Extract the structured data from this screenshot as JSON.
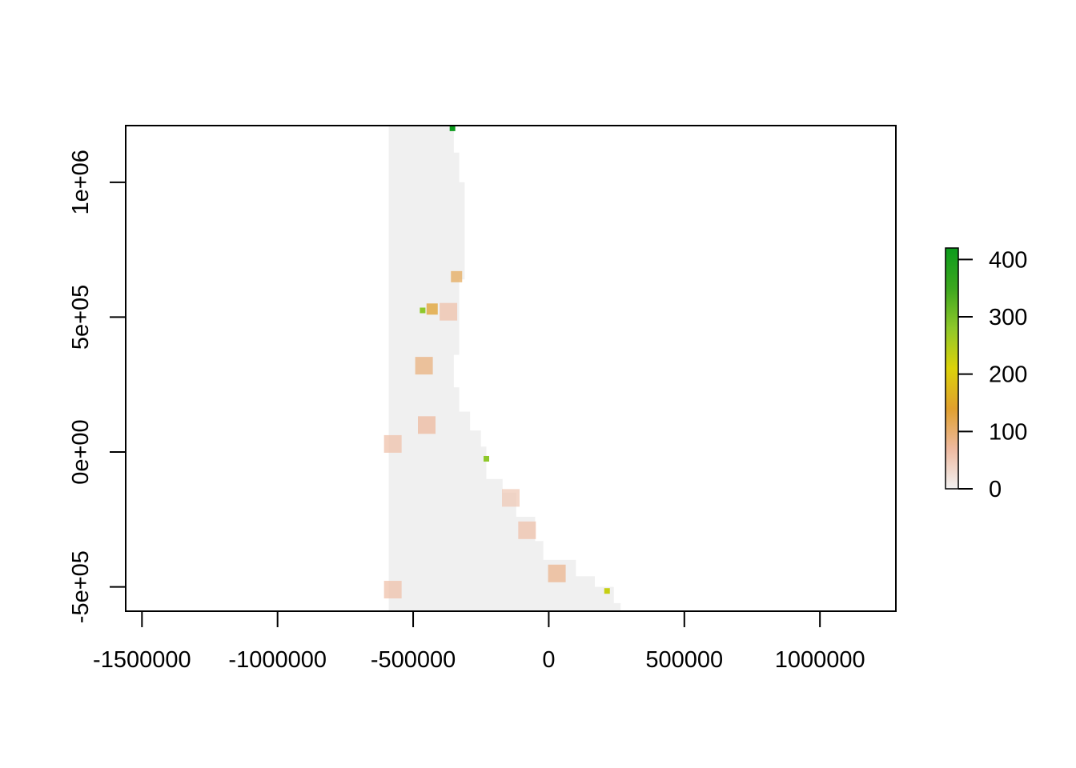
{
  "chart_data": {
    "type": "heatmap",
    "title": "",
    "xlabel": "",
    "ylabel": "",
    "xlim": [
      -1560000,
      1280000
    ],
    "ylim": [
      -590000,
      1210000
    ],
    "x_ticks": [
      {
        "value": -1500000,
        "label": "-1500000"
      },
      {
        "value": -1000000,
        "label": "-1000000"
      },
      {
        "value": -500000,
        "label": "-500000"
      },
      {
        "value": 0,
        "label": "0"
      },
      {
        "value": 500000,
        "label": "500000"
      },
      {
        "value": 1000000,
        "label": "1000000"
      }
    ],
    "y_ticks": [
      {
        "value": -500000,
        "label": "-5e+05"
      },
      {
        "value": 0,
        "label": "0e+00"
      },
      {
        "value": 500000,
        "label": "5e+05"
      },
      {
        "value": 1000000,
        "label": "1e+06"
      }
    ],
    "colorbar": {
      "min": 0,
      "max": 420,
      "ticks": [
        {
          "value": 0,
          "label": "0"
        },
        {
          "value": 100,
          "label": "100"
        },
        {
          "value": 200,
          "label": "200"
        },
        {
          "value": 300,
          "label": "300"
        },
        {
          "value": 400,
          "label": "400"
        }
      ],
      "colors": [
        "#f2f2f2",
        "#eeb99f",
        "#e0a02e",
        "#dcd20a",
        "#8fc82a",
        "#3ca71f",
        "#0c9b1c"
      ]
    },
    "background_value_color": "#f0f0f0",
    "region_outline": [
      [
        -590000,
        -590000
      ],
      [
        -590000,
        1210000
      ],
      [
        -350000,
        1210000
      ],
      [
        -350000,
        1110000
      ],
      [
        -330000,
        1110000
      ],
      [
        -330000,
        1000000
      ],
      [
        -310000,
        1000000
      ],
      [
        -310000,
        640000
      ],
      [
        -330000,
        640000
      ],
      [
        -330000,
        360000
      ],
      [
        -350000,
        360000
      ],
      [
        -350000,
        240000
      ],
      [
        -330000,
        240000
      ],
      [
        -330000,
        150000
      ],
      [
        -290000,
        150000
      ],
      [
        -290000,
        80000
      ],
      [
        -250000,
        80000
      ],
      [
        -250000,
        20000
      ],
      [
        -230000,
        20000
      ],
      [
        -230000,
        -100000
      ],
      [
        -170000,
        -100000
      ],
      [
        -170000,
        -150000
      ],
      [
        -120000,
        -150000
      ],
      [
        -120000,
        -240000
      ],
      [
        -50000,
        -240000
      ],
      [
        -50000,
        -330000
      ],
      [
        -20000,
        -330000
      ],
      [
        -20000,
        -400000
      ],
      [
        100000,
        -400000
      ],
      [
        100000,
        -460000
      ],
      [
        170000,
        -460000
      ],
      [
        170000,
        -500000
      ],
      [
        240000,
        -500000
      ],
      [
        240000,
        -560000
      ],
      [
        265000,
        -560000
      ],
      [
        265000,
        -590000
      ]
    ],
    "hotspots": [
      {
        "x": -430000,
        "y": 530000,
        "value": 140
      },
      {
        "x": -465000,
        "y": 525000,
        "value": 280
      },
      {
        "x": -460000,
        "y": 320000,
        "value": 90
      },
      {
        "x": -450000,
        "y": 100000,
        "value": 70
      },
      {
        "x": -575000,
        "y": 30000,
        "value": 60
      },
      {
        "x": -575000,
        "y": -510000,
        "value": 60
      },
      {
        "x": -340000,
        "y": 650000,
        "value": 110
      },
      {
        "x": -370000,
        "y": 520000,
        "value": 60
      },
      {
        "x": -230000,
        "y": -25000,
        "value": 280
      },
      {
        "x": 215000,
        "y": -515000,
        "value": 230
      },
      {
        "x": -355000,
        "y": 1200000,
        "value": 420
      },
      {
        "x": 30000,
        "y": -450000,
        "value": 80
      },
      {
        "x": -80000,
        "y": -290000,
        "value": 60
      },
      {
        "x": -140000,
        "y": -170000,
        "value": 50
      }
    ]
  }
}
